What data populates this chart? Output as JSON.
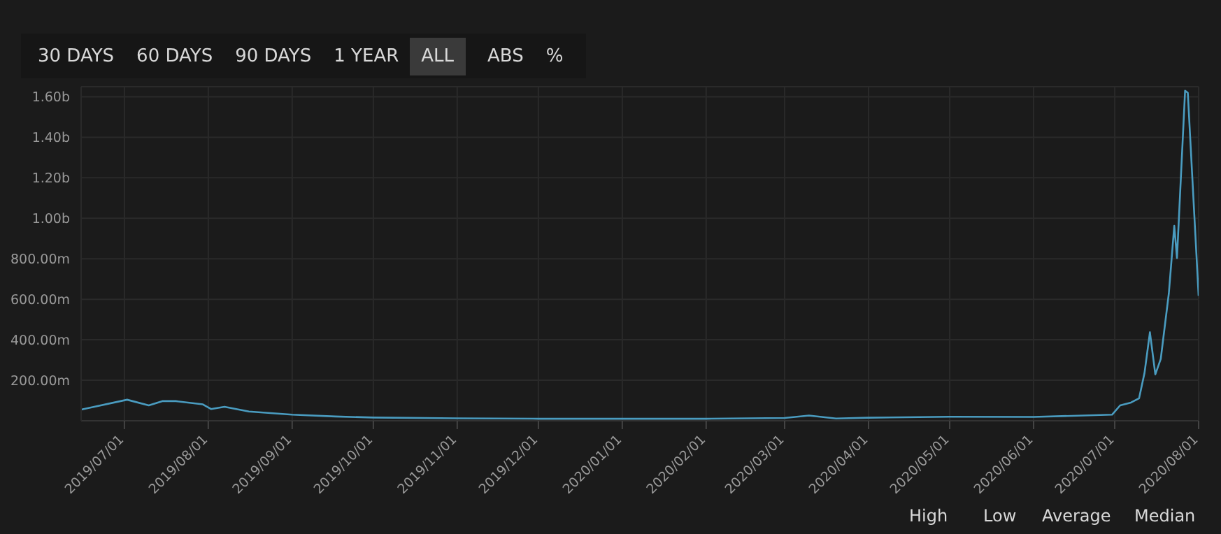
{
  "chart_data": {
    "type": "line",
    "x": [
      "2019-06-15",
      "2019-07-02",
      "2019-07-10",
      "2019-07-15",
      "2019-07-20",
      "2019-07-30",
      "2019-08-02",
      "2019-08-07",
      "2019-08-16",
      "2019-09-01",
      "2019-09-17",
      "2019-10-01",
      "2019-11-01",
      "2019-12-01",
      "2020-01-01",
      "2020-02-01",
      "2020-03-01",
      "2020-03-10",
      "2020-03-20",
      "2020-04-01",
      "2020-05-01",
      "2020-06-01",
      "2020-06-30",
      "2020-07-03",
      "2020-07-07",
      "2020-07-10",
      "2020-07-12",
      "2020-07-14",
      "2020-07-16",
      "2020-07-18",
      "2020-07-21",
      "2020-07-23",
      "2020-07-24",
      "2020-07-27",
      "2020-07-28",
      "2020-08-01"
    ],
    "series": [
      {
        "color": "#4a9cc0",
        "values": [
          55000000,
          104000000,
          76000000,
          97000000,
          97000000,
          81000000,
          58000000,
          69000000,
          46000000,
          30000000,
          21000000,
          16000000,
          12000000,
          10000000,
          10000000,
          10000000,
          14000000,
          26000000,
          11000000,
          15000000,
          20000000,
          19000000,
          30000000,
          76000000,
          90000000,
          111000000,
          236000000,
          437000000,
          229000000,
          305000000,
          630000000,
          963000000,
          804000000,
          1630000000,
          1620000000,
          617000000
        ]
      }
    ],
    "xlim": [
      "2019-06-15",
      "2020-08-01"
    ],
    "xticks": [
      {
        "value": "2019-07-01",
        "label": "2019/07/01"
      },
      {
        "value": "2019-08-01",
        "label": "2019/08/01"
      },
      {
        "value": "2019-09-01",
        "label": "2019/09/01"
      },
      {
        "value": "2019-10-01",
        "label": "2019/10/01"
      },
      {
        "value": "2019-11-01",
        "label": "2019/11/01"
      },
      {
        "value": "2019-12-01",
        "label": "2019/12/01"
      },
      {
        "value": "2020-01-01",
        "label": "2020/01/01"
      },
      {
        "value": "2020-02-01",
        "label": "2020/02/01"
      },
      {
        "value": "2020-03-01",
        "label": "2020/03/01"
      },
      {
        "value": "2020-04-01",
        "label": "2020/04/01"
      },
      {
        "value": "2020-05-01",
        "label": "2020/05/01"
      },
      {
        "value": "2020-06-01",
        "label": "2020/06/01"
      },
      {
        "value": "2020-07-01",
        "label": "2020/07/01"
      },
      {
        "value": "2020-08-01",
        "label": "2020/08/01"
      }
    ],
    "ylim": [
      0,
      1650000000
    ],
    "yticks": [
      {
        "value": 200000000,
        "label": "200.00m"
      },
      {
        "value": 400000000,
        "label": "400.00m"
      },
      {
        "value": 600000000,
        "label": "600.00m"
      },
      {
        "value": 800000000,
        "label": "800.00m"
      },
      {
        "value": 1000000000,
        "label": "1.00b"
      },
      {
        "value": 1200000000,
        "label": "1.20b"
      },
      {
        "value": 1400000000,
        "label": "1.40b"
      },
      {
        "value": 1600000000,
        "label": "1.60b"
      }
    ],
    "grid": true,
    "marker": "none",
    "annotations": [
      "30 DAYS",
      "60 DAYS",
      "90 DAYS",
      "1 YEAR",
      "ALL",
      "ABS",
      "%",
      "High",
      "Low",
      "Average",
      "Median"
    ]
  }
}
